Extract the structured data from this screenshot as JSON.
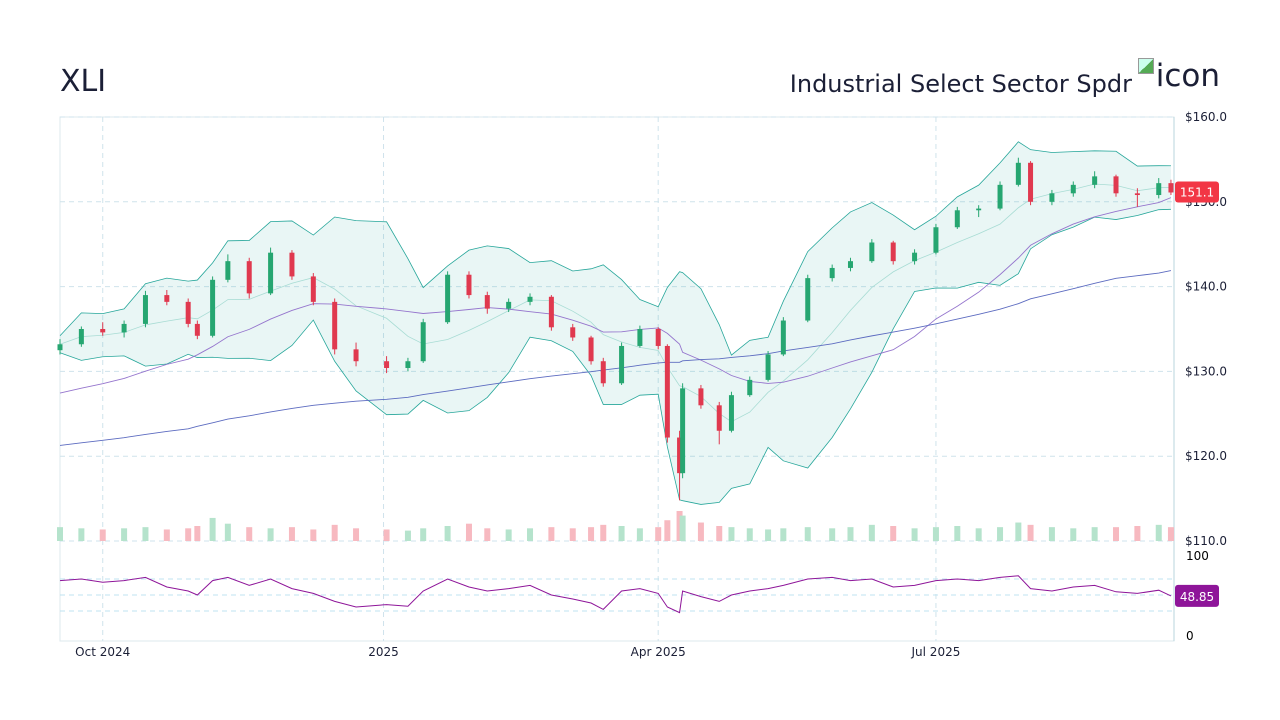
{
  "header": {
    "ticker": "XLI",
    "name": "Industrial Select Sector Spdr",
    "icon_alt": "icon"
  },
  "colors": {
    "up": "#26a671",
    "down": "#e0394f",
    "band": "#26a69a",
    "sma_short": "#9575cd",
    "sma_long": "#5c6bc0",
    "rsi": "#8e1599",
    "last_price_bg": "#f23645"
  },
  "chart_data": {
    "type": "candlestick",
    "y_axis": {
      "min": 110,
      "max": 160,
      "ticks": [
        160,
        150,
        140,
        130,
        120,
        110
      ],
      "tick_labels": [
        "$160.0",
        "$150.0",
        "$140.0",
        "$130.0",
        "$120.0",
        "$110.0"
      ]
    },
    "x_axis": {
      "tick_labels": [
        {
          "date": "2024-10-01",
          "label": "Oct 2024"
        },
        {
          "date": "2025-01-01",
          "label": "2025"
        },
        {
          "date": "2025-04-01",
          "label": "Apr 2025"
        },
        {
          "date": "2025-07-01",
          "label": "Jul 2025"
        }
      ],
      "start": "2024-09-17",
      "end": "2025-09-17"
    },
    "last_price": "151.1",
    "grid": true,
    "candles": [
      [
        "2024-09-17",
        132.5,
        133.8,
        132.0,
        133.2
      ],
      [
        "2024-09-24",
        133.2,
        135.3,
        132.9,
        135.0
      ],
      [
        "2024-10-01",
        135.0,
        135.8,
        134.2,
        134.6
      ],
      [
        "2024-10-08",
        134.6,
        136.0,
        134.0,
        135.6
      ],
      [
        "2024-10-15",
        135.6,
        139.5,
        135.2,
        139.0
      ],
      [
        "2024-10-22",
        139.0,
        139.6,
        137.8,
        138.2
      ],
      [
        "2024-10-29",
        138.2,
        138.6,
        135.2,
        135.6
      ],
      [
        "2024-11-01",
        135.6,
        136.0,
        133.8,
        134.2
      ],
      [
        "2024-11-06",
        134.2,
        141.2,
        134.0,
        140.8
      ],
      [
        "2024-11-11",
        140.8,
        143.8,
        140.5,
        143.0
      ],
      [
        "2024-11-18",
        143.0,
        143.4,
        138.6,
        139.2
      ],
      [
        "2024-11-25",
        139.2,
        144.6,
        139.0,
        144.0
      ],
      [
        "2024-12-02",
        144.0,
        144.3,
        140.8,
        141.2
      ],
      [
        "2024-12-09",
        141.2,
        141.6,
        137.8,
        138.2
      ],
      [
        "2024-12-16",
        138.2,
        138.6,
        132.0,
        132.6
      ],
      [
        "2024-12-23",
        132.6,
        133.4,
        130.6,
        131.2
      ],
      [
        "2025-01-02",
        131.2,
        131.8,
        129.8,
        130.4
      ],
      [
        "2025-01-09",
        130.4,
        131.6,
        130.0,
        131.2
      ],
      [
        "2025-01-14",
        131.2,
        136.2,
        131.0,
        135.8
      ],
      [
        "2025-01-22",
        135.8,
        141.8,
        135.6,
        141.4
      ],
      [
        "2025-01-29",
        141.4,
        141.8,
        138.6,
        139.0
      ],
      [
        "2025-02-04",
        139.0,
        139.4,
        136.8,
        137.4
      ],
      [
        "2025-02-11",
        137.4,
        138.6,
        137.0,
        138.2
      ],
      [
        "2025-02-18",
        138.2,
        139.2,
        137.8,
        138.8
      ],
      [
        "2025-02-25",
        138.8,
        139.0,
        134.8,
        135.2
      ],
      [
        "2025-03-04",
        135.2,
        135.6,
        133.6,
        134.0
      ],
      [
        "2025-03-10",
        134.0,
        134.2,
        130.8,
        131.2
      ],
      [
        "2025-03-14",
        131.2,
        131.6,
        128.2,
        128.6
      ],
      [
        "2025-03-20",
        128.6,
        133.4,
        128.4,
        133.0
      ],
      [
        "2025-03-26",
        133.0,
        135.4,
        132.8,
        135.0
      ],
      [
        "2025-04-01",
        135.0,
        135.2,
        132.6,
        133.0
      ],
      [
        "2025-04-04",
        133.0,
        133.2,
        121.6,
        122.2
      ],
      [
        "2025-04-08",
        122.2,
        123.0,
        114.8,
        118.0
      ],
      [
        "2025-04-09",
        118.0,
        128.6,
        117.4,
        128.0
      ],
      [
        "2025-04-15",
        128.0,
        128.4,
        125.6,
        126.0
      ],
      [
        "2025-04-21",
        126.0,
        126.4,
        121.4,
        123.0
      ],
      [
        "2025-04-25",
        123.0,
        127.6,
        122.8,
        127.2
      ],
      [
        "2025-05-01",
        127.2,
        129.4,
        127.0,
        129.0
      ],
      [
        "2025-05-07",
        129.0,
        132.4,
        128.8,
        132.0
      ],
      [
        "2025-05-12",
        132.0,
        136.4,
        131.8,
        136.0
      ],
      [
        "2025-05-20",
        136.0,
        141.4,
        135.8,
        141.0
      ],
      [
        "2025-05-28",
        141.0,
        142.6,
        140.6,
        142.2
      ],
      [
        "2025-06-03",
        142.2,
        143.4,
        141.8,
        143.0
      ],
      [
        "2025-06-10",
        143.0,
        145.6,
        142.8,
        145.2
      ],
      [
        "2025-06-17",
        145.2,
        145.4,
        142.6,
        143.0
      ],
      [
        "2025-06-24",
        143.0,
        144.4,
        142.6,
        144.0
      ],
      [
        "2025-07-01",
        144.0,
        147.4,
        143.8,
        147.0
      ],
      [
        "2025-07-08",
        147.0,
        149.4,
        146.8,
        149.0
      ],
      [
        "2025-07-15",
        149.0,
        149.6,
        148.2,
        149.2
      ],
      [
        "2025-07-22",
        149.2,
        152.4,
        149.0,
        152.0
      ],
      [
        "2025-07-28",
        152.0,
        155.2,
        151.8,
        154.6
      ],
      [
        "2025-08-01",
        154.6,
        154.8,
        149.6,
        150.0
      ],
      [
        "2025-08-08",
        150.0,
        151.4,
        149.6,
        151.0
      ],
      [
        "2025-08-15",
        151.0,
        152.4,
        150.6,
        152.0
      ],
      [
        "2025-08-22",
        152.0,
        153.6,
        151.6,
        153.0
      ],
      [
        "2025-08-29",
        153.0,
        153.2,
        150.6,
        151.0
      ],
      [
        "2025-09-05",
        151.0,
        151.6,
        149.4,
        150.8
      ],
      [
        "2025-09-12",
        150.8,
        152.8,
        150.4,
        152.2
      ],
      [
        "2025-09-16",
        152.2,
        152.6,
        150.8,
        151.1
      ]
    ],
    "volume": [
      12,
      11,
      10,
      11,
      12,
      10,
      11,
      13,
      20,
      15,
      12,
      11,
      12,
      10,
      14,
      11,
      10,
      9,
      11,
      13,
      15,
      11,
      10,
      11,
      12,
      11,
      12,
      14,
      13,
      11,
      12,
      18,
      26,
      22,
      16,
      13,
      12,
      11,
      10,
      11,
      12,
      11,
      12,
      14,
      13,
      11,
      12,
      13,
      11,
      12,
      16,
      14,
      12,
      11,
      12,
      12,
      13,
      14,
      12
    ],
    "rsi": {
      "axis_labels": [
        "100",
        "0"
      ],
      "last": "48.85",
      "values": [
        68,
        70,
        66,
        68,
        72,
        60,
        55,
        50,
        68,
        72,
        62,
        70,
        58,
        52,
        42,
        35,
        38,
        36,
        55,
        70,
        60,
        55,
        58,
        62,
        50,
        45,
        40,
        32,
        55,
        58,
        52,
        35,
        28,
        55,
        48,
        42,
        50,
        55,
        58,
        62,
        70,
        72,
        68,
        70,
        60,
        62,
        68,
        70,
        68,
        72,
        74,
        58,
        55,
        60,
        62,
        54,
        52,
        56,
        48.85
      ]
    }
  }
}
